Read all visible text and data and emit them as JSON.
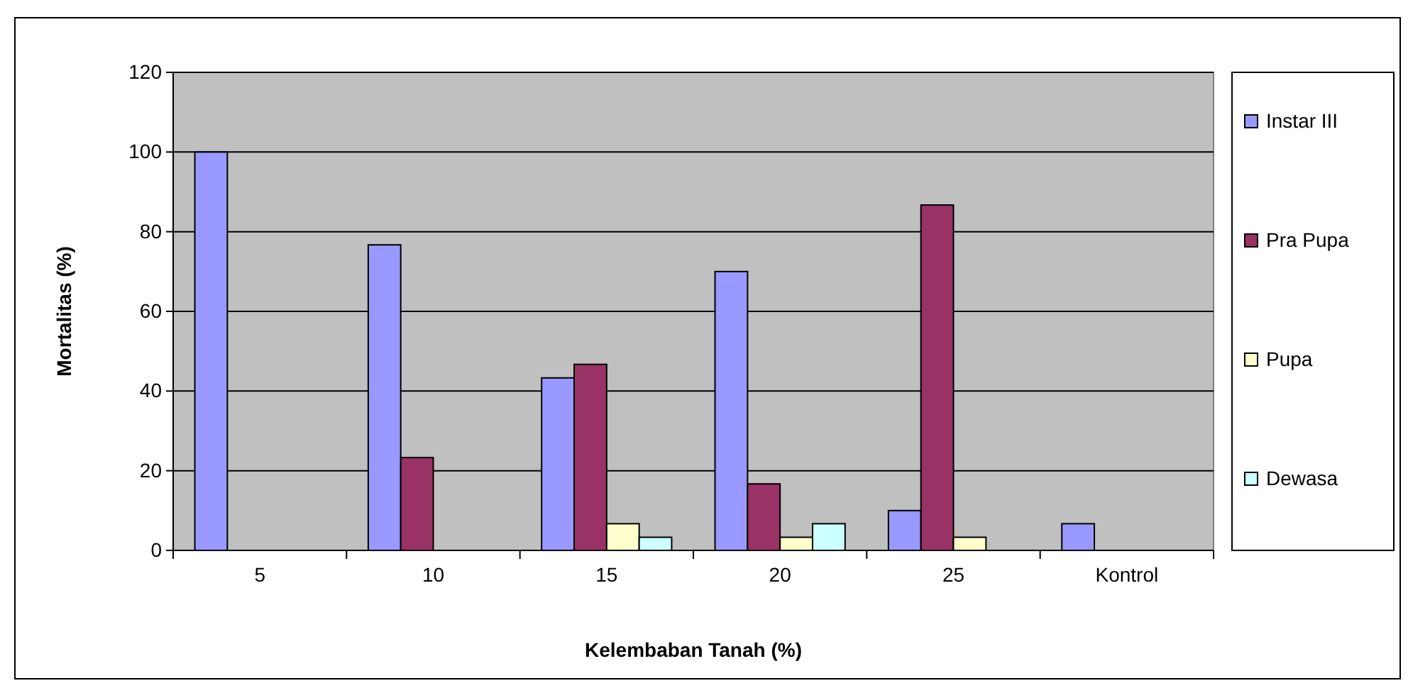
{
  "chart_data": {
    "type": "bar",
    "xlabel": "Kelembaban Tanah (%)",
    "ylabel": "Mortalitas (%)",
    "categories": [
      "5",
      "10",
      "15",
      "20",
      "25",
      "Kontrol"
    ],
    "series": [
      {
        "name": "Instar III",
        "color": "#9999ff",
        "values": [
          100,
          76.7,
          43.3,
          70,
          10,
          6.7
        ]
      },
      {
        "name": "Pra Pupa",
        "color": "#993366",
        "values": [
          0,
          23.3,
          46.7,
          16.7,
          86.7,
          0
        ]
      },
      {
        "name": "Pupa",
        "color": "#ffffcc",
        "values": [
          0,
          0,
          6.7,
          3.3,
          3.3,
          0
        ]
      },
      {
        "name": "Dewasa",
        "color": "#ccffff",
        "values": [
          0,
          0,
          3.3,
          6.7,
          0,
          0
        ]
      }
    ],
    "ylim": [
      0,
      120
    ],
    "yticks": [
      0,
      20,
      40,
      60,
      80,
      100,
      120
    ],
    "grid": "y",
    "legend": "right"
  }
}
